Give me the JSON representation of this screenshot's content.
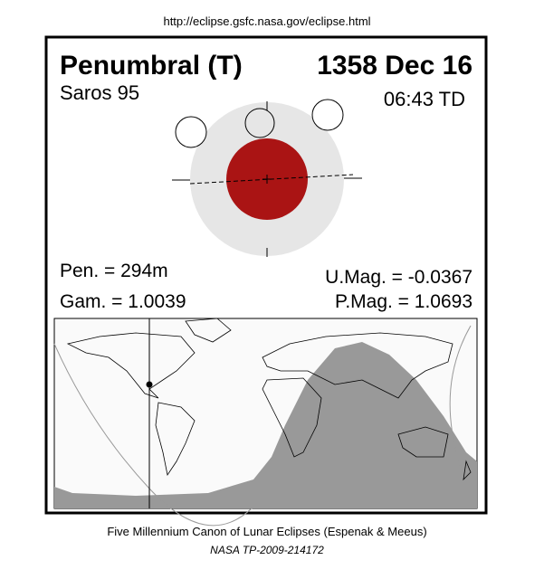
{
  "header": {
    "url": "http://eclipse.gsfc.nasa.gov/eclipse.html"
  },
  "eclipse": {
    "type": "Penumbral (T)",
    "date": "1358 Dec 16",
    "saros": "Saros  95",
    "time": "06:43 TD"
  },
  "parameters": {
    "pen": "Pen. = 294m",
    "gam": "Gam. = 1.0039",
    "umag": "U.Mag. = -0.0367",
    "pmag": "P.Mag. = 1.0693"
  },
  "footer": {
    "canon": "Five Millennium Canon of Lunar Eclipses (Espenak & Meeus)",
    "publication": "NASA TP-2009-214172"
  }
}
